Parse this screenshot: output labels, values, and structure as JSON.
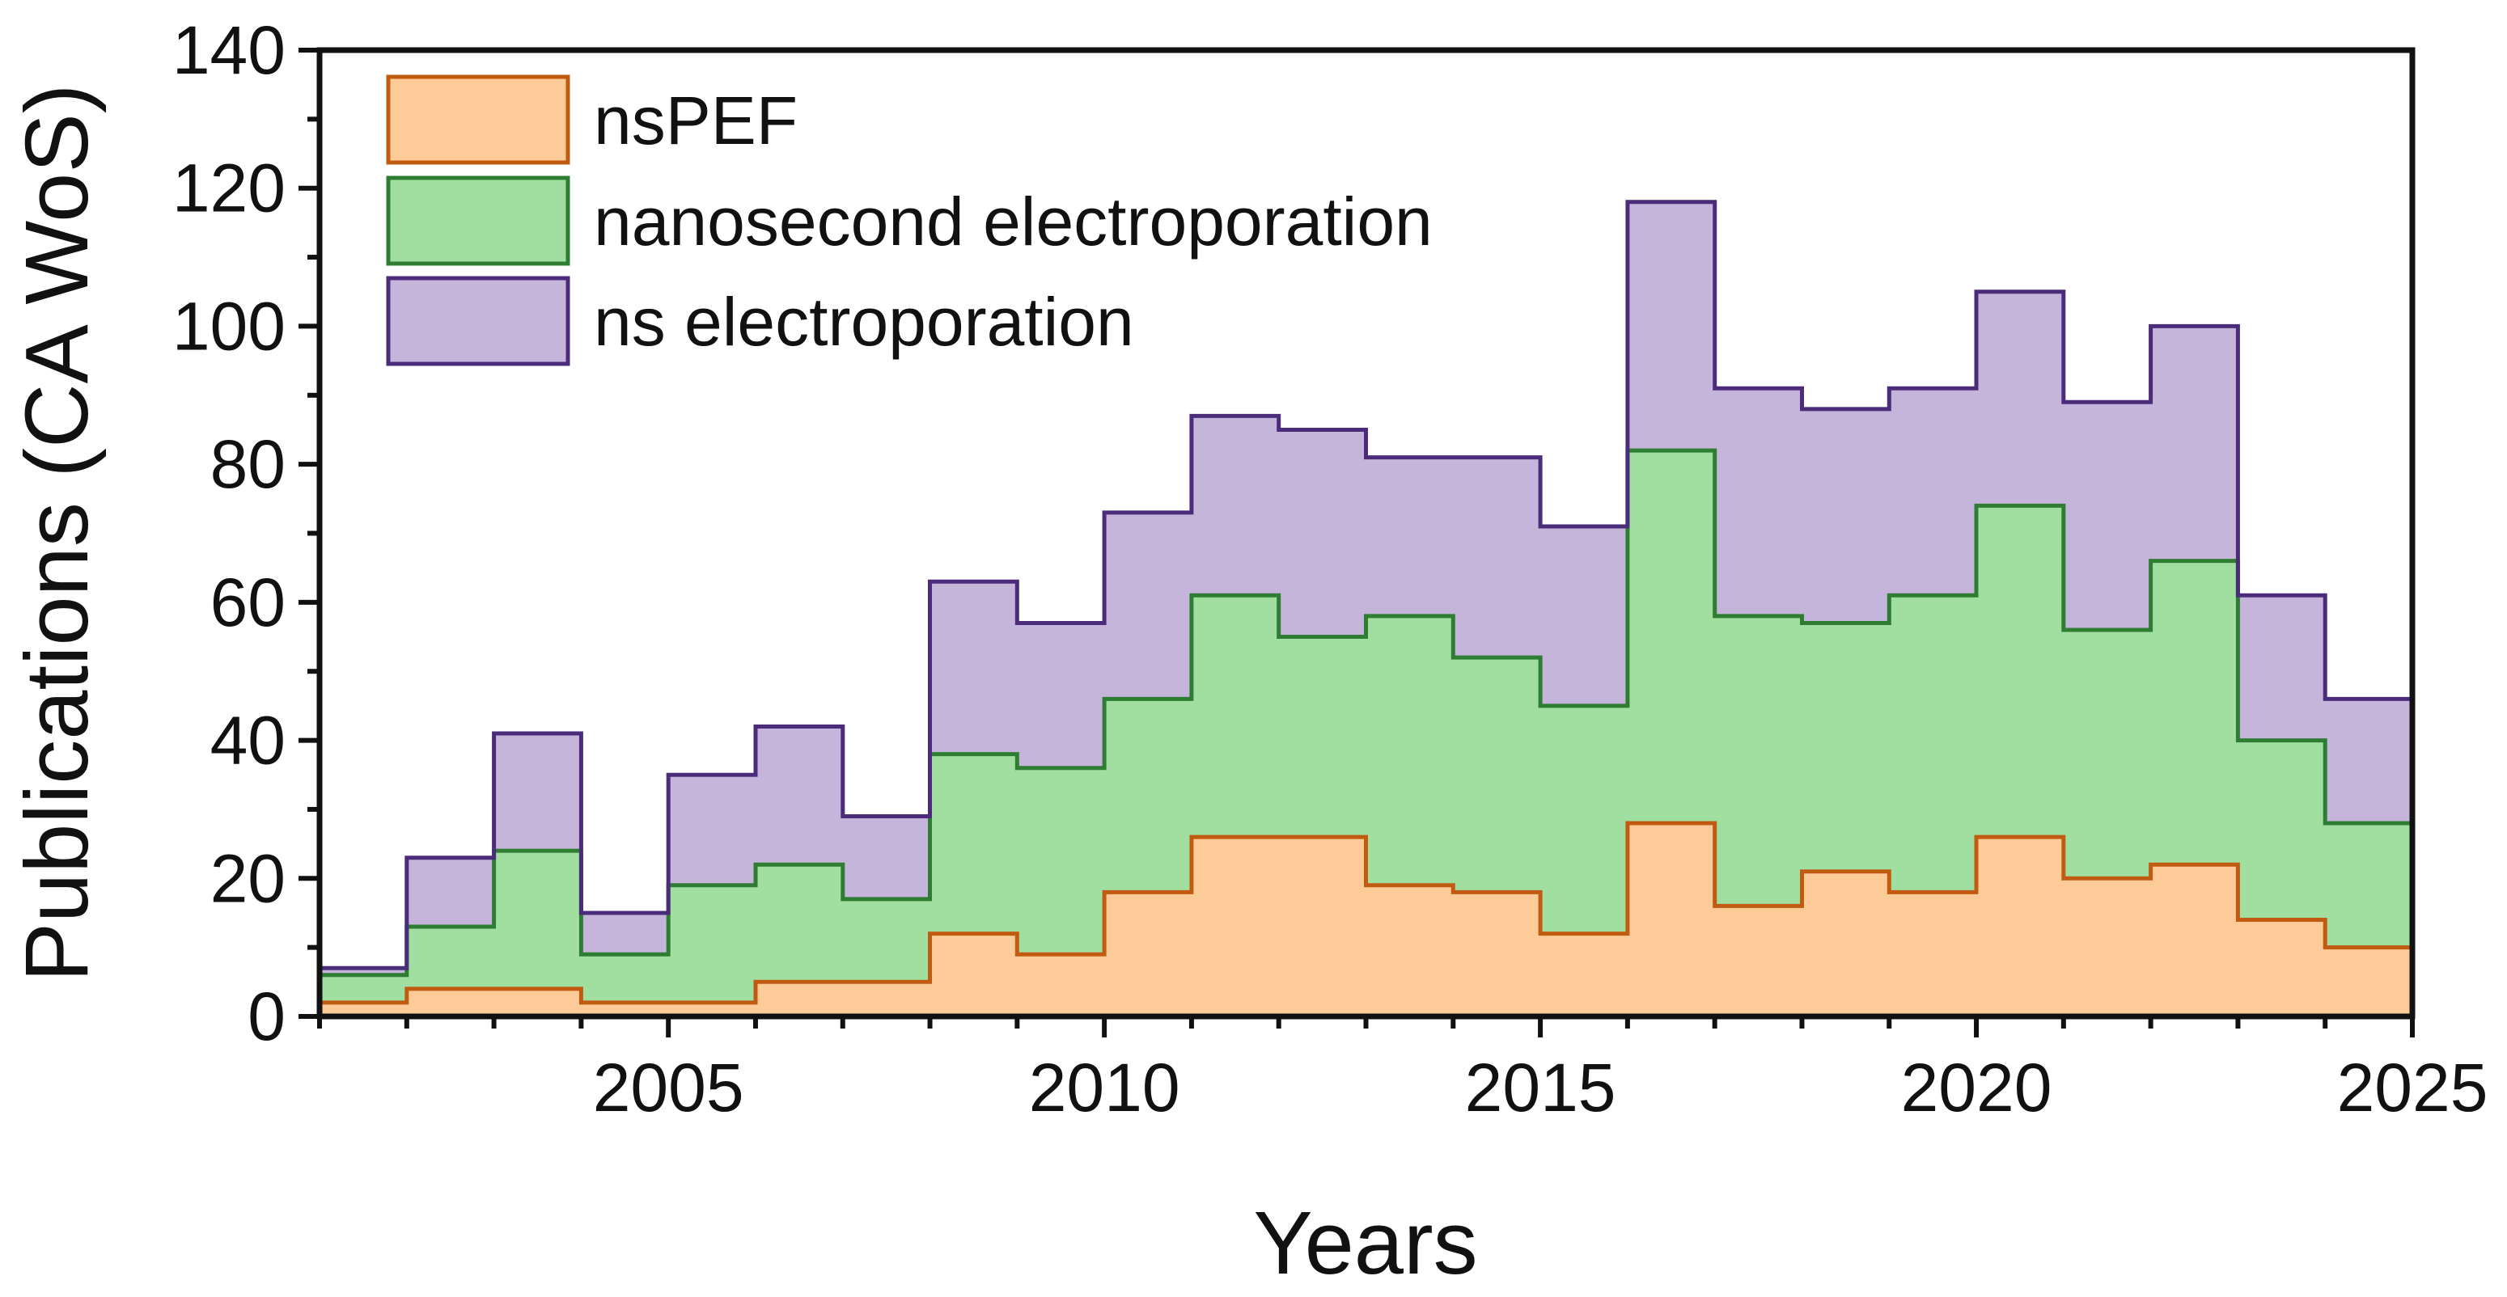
{
  "chart_data": {
    "type": "area",
    "subtype": "stacked-step-histogram",
    "title": "",
    "xlabel": "Years",
    "ylabel": "Publications (CA WoS)",
    "xlim": [
      2001,
      2025
    ],
    "ylim": [
      0,
      140
    ],
    "x_major_ticks": [
      2005,
      2010,
      2015,
      2020,
      2025
    ],
    "x_tick_labels": [
      "2005",
      "2010",
      "2015",
      "2020",
      "2025"
    ],
    "y_major_ticks": [
      0,
      20,
      40,
      60,
      80,
      100,
      120,
      140
    ],
    "y_tick_labels": [
      "0",
      "20",
      "40",
      "60",
      "80",
      "100",
      "120",
      "140"
    ],
    "bins_start": [
      2001,
      2002,
      2003,
      2004,
      2005,
      2006,
      2007,
      2008,
      2009,
      2010,
      2011,
      2012,
      2013,
      2014,
      2015,
      2016,
      2017,
      2018,
      2019,
      2020,
      2021,
      2022,
      2023,
      2024
    ],
    "bin_width": 1,
    "legend_position": "top-left",
    "grid": false,
    "series": [
      {
        "name": "nsPEF",
        "fill": "#fdcb98",
        "stroke": "#c25b12",
        "cumulative_values": [
          2,
          4,
          4,
          2,
          2,
          5,
          5,
          12,
          9,
          18,
          26,
          26,
          19,
          18,
          12,
          28,
          16,
          21,
          18,
          26,
          20,
          22,
          14,
          10
        ]
      },
      {
        "name": "nanosecond electroporation",
        "fill": "#a1dfa1",
        "stroke": "#2e7d32",
        "cumulative_values": [
          6,
          13,
          24,
          9,
          19,
          22,
          17,
          38,
          36,
          46,
          61,
          55,
          58,
          52,
          45,
          82,
          58,
          57,
          61,
          74,
          56,
          66,
          40,
          28
        ]
      },
      {
        "name": "ns electroporation",
        "fill": "#c6b5db",
        "stroke": "#4b2c7a",
        "cumulative_values": [
          7,
          23,
          41,
          15,
          35,
          42,
          29,
          63,
          57,
          73,
          87,
          85,
          81,
          81,
          71,
          118,
          91,
          88,
          91,
          105,
          89,
          100,
          61,
          46
        ]
      }
    ]
  }
}
